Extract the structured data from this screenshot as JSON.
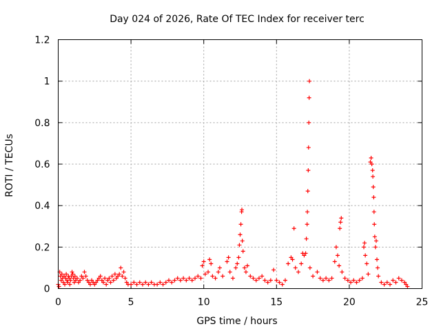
{
  "chart_data": {
    "type": "scatter",
    "title": "Day 024 of 2026, Rate Of TEC Index for receiver terc",
    "xlabel": "GPS time / hours",
    "ylabel": "ROTI / TECUs",
    "xlim": [
      0,
      25
    ],
    "ylim": [
      0,
      1.2
    ],
    "xticks": [
      0,
      5,
      10,
      15,
      20,
      25
    ],
    "xtick_labels": [
      "0",
      "5",
      "10",
      "15",
      "20",
      "25"
    ],
    "yticks": [
      0,
      0.2,
      0.4,
      0.6,
      0.8,
      1,
      1.2
    ],
    "ytick_labels": [
      "0",
      "0.2",
      "0.4",
      "0.6",
      "0.8",
      "1",
      "1.2"
    ],
    "grid": true,
    "marker": "+",
    "color": "#ff0000",
    "series": [
      {
        "name": "ROTI",
        "points": [
          [
            0.0,
            0.02
          ],
          [
            0.05,
            0.01
          ],
          [
            0.1,
            0.08
          ],
          [
            0.15,
            0.06
          ],
          [
            0.2,
            0.04
          ],
          [
            0.25,
            0.07
          ],
          [
            0.3,
            0.05
          ],
          [
            0.35,
            0.03
          ],
          [
            0.4,
            0.06
          ],
          [
            0.45,
            0.02
          ],
          [
            0.5,
            0.05
          ],
          [
            0.55,
            0.07
          ],
          [
            0.6,
            0.04
          ],
          [
            0.65,
            0.03
          ],
          [
            0.7,
            0.06
          ],
          [
            0.75,
            0.05
          ],
          [
            0.8,
            0.02
          ],
          [
            0.85,
            0.04
          ],
          [
            0.9,
            0.06
          ],
          [
            0.95,
            0.08
          ],
          [
            1.0,
            0.07
          ],
          [
            1.05,
            0.05
          ],
          [
            1.1,
            0.03
          ],
          [
            1.15,
            0.06
          ],
          [
            1.2,
            0.04
          ],
          [
            1.3,
            0.05
          ],
          [
            1.4,
            0.03
          ],
          [
            1.5,
            0.04
          ],
          [
            1.6,
            0.06
          ],
          [
            1.7,
            0.05
          ],
          [
            1.8,
            0.08
          ],
          [
            1.9,
            0.06
          ],
          [
            2.0,
            0.04
          ],
          [
            2.1,
            0.03
          ],
          [
            2.2,
            0.02
          ],
          [
            2.3,
            0.04
          ],
          [
            2.4,
            0.03
          ],
          [
            2.5,
            0.02
          ],
          [
            2.6,
            0.03
          ],
          [
            2.7,
            0.04
          ],
          [
            2.8,
            0.05
          ],
          [
            2.9,
            0.06
          ],
          [
            3.0,
            0.04
          ],
          [
            3.1,
            0.03
          ],
          [
            3.2,
            0.05
          ],
          [
            3.3,
            0.02
          ],
          [
            3.4,
            0.04
          ],
          [
            3.5,
            0.05
          ],
          [
            3.6,
            0.03
          ],
          [
            3.7,
            0.06
          ],
          [
            3.8,
            0.04
          ],
          [
            3.9,
            0.07
          ],
          [
            4.0,
            0.05
          ],
          [
            4.1,
            0.06
          ],
          [
            4.2,
            0.07
          ],
          [
            4.3,
            0.1
          ],
          [
            4.4,
            0.06
          ],
          [
            4.5,
            0.08
          ],
          [
            4.6,
            0.05
          ],
          [
            4.7,
            0.03
          ],
          [
            4.8,
            0.02
          ],
          [
            5.0,
            0.02
          ],
          [
            5.2,
            0.03
          ],
          [
            5.4,
            0.02
          ],
          [
            5.6,
            0.03
          ],
          [
            5.8,
            0.02
          ],
          [
            6.0,
            0.03
          ],
          [
            6.2,
            0.02
          ],
          [
            6.4,
            0.03
          ],
          [
            6.6,
            0.02
          ],
          [
            6.8,
            0.02
          ],
          [
            7.0,
            0.03
          ],
          [
            7.2,
            0.02
          ],
          [
            7.4,
            0.03
          ],
          [
            7.6,
            0.04
          ],
          [
            7.8,
            0.03
          ],
          [
            8.0,
            0.04
          ],
          [
            8.2,
            0.05
          ],
          [
            8.4,
            0.04
          ],
          [
            8.6,
            0.05
          ],
          [
            8.8,
            0.04
          ],
          [
            9.0,
            0.05
          ],
          [
            9.2,
            0.04
          ],
          [
            9.4,
            0.05
          ],
          [
            9.6,
            0.06
          ],
          [
            9.8,
            0.05
          ],
          [
            9.9,
            0.11
          ],
          [
            10.0,
            0.13
          ],
          [
            10.1,
            0.07
          ],
          [
            10.3,
            0.08
          ],
          [
            10.4,
            0.14
          ],
          [
            10.5,
            0.12
          ],
          [
            10.6,
            0.06
          ],
          [
            10.8,
            0.05
          ],
          [
            11.0,
            0.08
          ],
          [
            11.1,
            0.1
          ],
          [
            11.3,
            0.06
          ],
          [
            11.6,
            0.13
          ],
          [
            11.7,
            0.15
          ],
          [
            11.8,
            0.08
          ],
          [
            12.0,
            0.05
          ],
          [
            12.2,
            0.1
          ],
          [
            12.3,
            0.12
          ],
          [
            12.4,
            0.15
          ],
          [
            12.45,
            0.21
          ],
          [
            12.5,
            0.26
          ],
          [
            12.55,
            0.31
          ],
          [
            12.6,
            0.37
          ],
          [
            12.62,
            0.38
          ],
          [
            12.65,
            0.23
          ],
          [
            12.7,
            0.18
          ],
          [
            12.8,
            0.1
          ],
          [
            12.9,
            0.08
          ],
          [
            13.0,
            0.11
          ],
          [
            13.2,
            0.06
          ],
          [
            13.4,
            0.05
          ],
          [
            13.6,
            0.04
          ],
          [
            13.8,
            0.05
          ],
          [
            14.0,
            0.06
          ],
          [
            14.2,
            0.04
          ],
          [
            14.4,
            0.03
          ],
          [
            14.6,
            0.04
          ],
          [
            14.8,
            0.09
          ],
          [
            15.0,
            0.04
          ],
          [
            15.2,
            0.03
          ],
          [
            15.4,
            0.02
          ],
          [
            15.6,
            0.04
          ],
          [
            15.8,
            0.12
          ],
          [
            16.0,
            0.15
          ],
          [
            16.1,
            0.14
          ],
          [
            16.2,
            0.29
          ],
          [
            16.3,
            0.1
          ],
          [
            16.5,
            0.08
          ],
          [
            16.7,
            0.12
          ],
          [
            16.8,
            0.17
          ],
          [
            16.9,
            0.16
          ],
          [
            17.0,
            0.17
          ],
          [
            17.05,
            0.24
          ],
          [
            17.1,
            0.31
          ],
          [
            17.12,
            0.37
          ],
          [
            17.15,
            0.47
          ],
          [
            17.18,
            0.57
          ],
          [
            17.2,
            0.68
          ],
          [
            17.22,
            0.8
          ],
          [
            17.24,
            0.92
          ],
          [
            17.26,
            1.0
          ],
          [
            17.3,
            0.1
          ],
          [
            17.5,
            0.06
          ],
          [
            17.8,
            0.08
          ],
          [
            18.0,
            0.05
          ],
          [
            18.2,
            0.04
          ],
          [
            18.4,
            0.05
          ],
          [
            18.6,
            0.04
          ],
          [
            18.8,
            0.05
          ],
          [
            19.0,
            0.13
          ],
          [
            19.1,
            0.2
          ],
          [
            19.2,
            0.16
          ],
          [
            19.3,
            0.11
          ],
          [
            19.35,
            0.29
          ],
          [
            19.4,
            0.32
          ],
          [
            19.45,
            0.34
          ],
          [
            19.5,
            0.08
          ],
          [
            19.7,
            0.05
          ],
          [
            19.9,
            0.04
          ],
          [
            20.1,
            0.03
          ],
          [
            20.3,
            0.04
          ],
          [
            20.5,
            0.03
          ],
          [
            20.7,
            0.04
          ],
          [
            20.9,
            0.05
          ],
          [
            21.0,
            0.2
          ],
          [
            21.05,
            0.22
          ],
          [
            21.1,
            0.16
          ],
          [
            21.2,
            0.12
          ],
          [
            21.3,
            0.07
          ],
          [
            21.45,
            0.61
          ],
          [
            21.5,
            0.63
          ],
          [
            21.55,
            0.6
          ],
          [
            21.6,
            0.57
          ],
          [
            21.62,
            0.54
          ],
          [
            21.65,
            0.49
          ],
          [
            21.68,
            0.44
          ],
          [
            21.7,
            0.37
          ],
          [
            21.72,
            0.31
          ],
          [
            21.75,
            0.25
          ],
          [
            21.8,
            0.2
          ],
          [
            21.85,
            0.23
          ],
          [
            21.9,
            0.14
          ],
          [
            21.95,
            0.1
          ],
          [
            22.0,
            0.06
          ],
          [
            22.2,
            0.03
          ],
          [
            22.4,
            0.02
          ],
          [
            22.6,
            0.03
          ],
          [
            22.8,
            0.02
          ],
          [
            23.0,
            0.04
          ],
          [
            23.2,
            0.03
          ],
          [
            23.4,
            0.05
          ],
          [
            23.6,
            0.04
          ],
          [
            23.8,
            0.03
          ],
          [
            23.9,
            0.02
          ],
          [
            24.0,
            0.01
          ]
        ]
      }
    ]
  }
}
